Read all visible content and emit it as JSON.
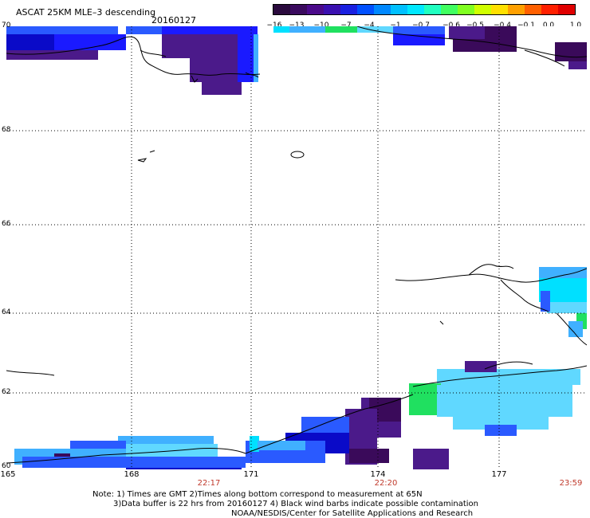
{
  "header": {
    "title": "ASCAT 25KM MLE–3 descending",
    "date": "20160127"
  },
  "colorbar": {
    "labels": [
      "−16",
      "−13",
      "−10",
      "−7",
      "−4",
      "−1",
      "−0.7",
      "−0.6",
      "−0.5",
      "−0.4",
      "−0.1",
      "0.0",
      "1.0"
    ],
    "colors": [
      "#2a0a3d",
      "#3a0a5e",
      "#4b0a8a",
      "#3a10b0",
      "#1a20e0",
      "#0050ff",
      "#0088ff",
      "#00c0ff",
      "#00e8ff",
      "#20ffc0",
      "#40ff60",
      "#80ff20",
      "#d0ff00",
      "#ffe000",
      "#ffa000",
      "#ff6000",
      "#ff2000",
      "#e00000"
    ]
  },
  "axes": {
    "lat_labels": [
      "70",
      "68",
      "66",
      "64",
      "62",
      "60"
    ],
    "lon_labels": [
      "165",
      "168",
      "171",
      "174",
      "177"
    ],
    "time_labels": [
      "22:17",
      "22:20",
      "23:59"
    ]
  },
  "colors": {
    "purple": "#3a0a5a",
    "violet": "#4b1a8a",
    "blue": "#1a1aff",
    "deep_blue": "#0a0ac8",
    "mid_blue": "#2a5aff",
    "light_blue": "#40b0ff",
    "cyan": "#00e0ff",
    "light_cyan": "#60d8ff",
    "green": "#20e060",
    "time_red": "#c0392b"
  },
  "notes": {
    "line1": "Note: 1) Times are GMT 2)Times along bottom correspond to measurement at 65N",
    "line2": "3)Data buffer is 22 hrs from 20160127 4) Black wind barbs indicate possible contamination",
    "line3": "NOAA/NESDIS/Center for Satellite Applications and Research"
  }
}
